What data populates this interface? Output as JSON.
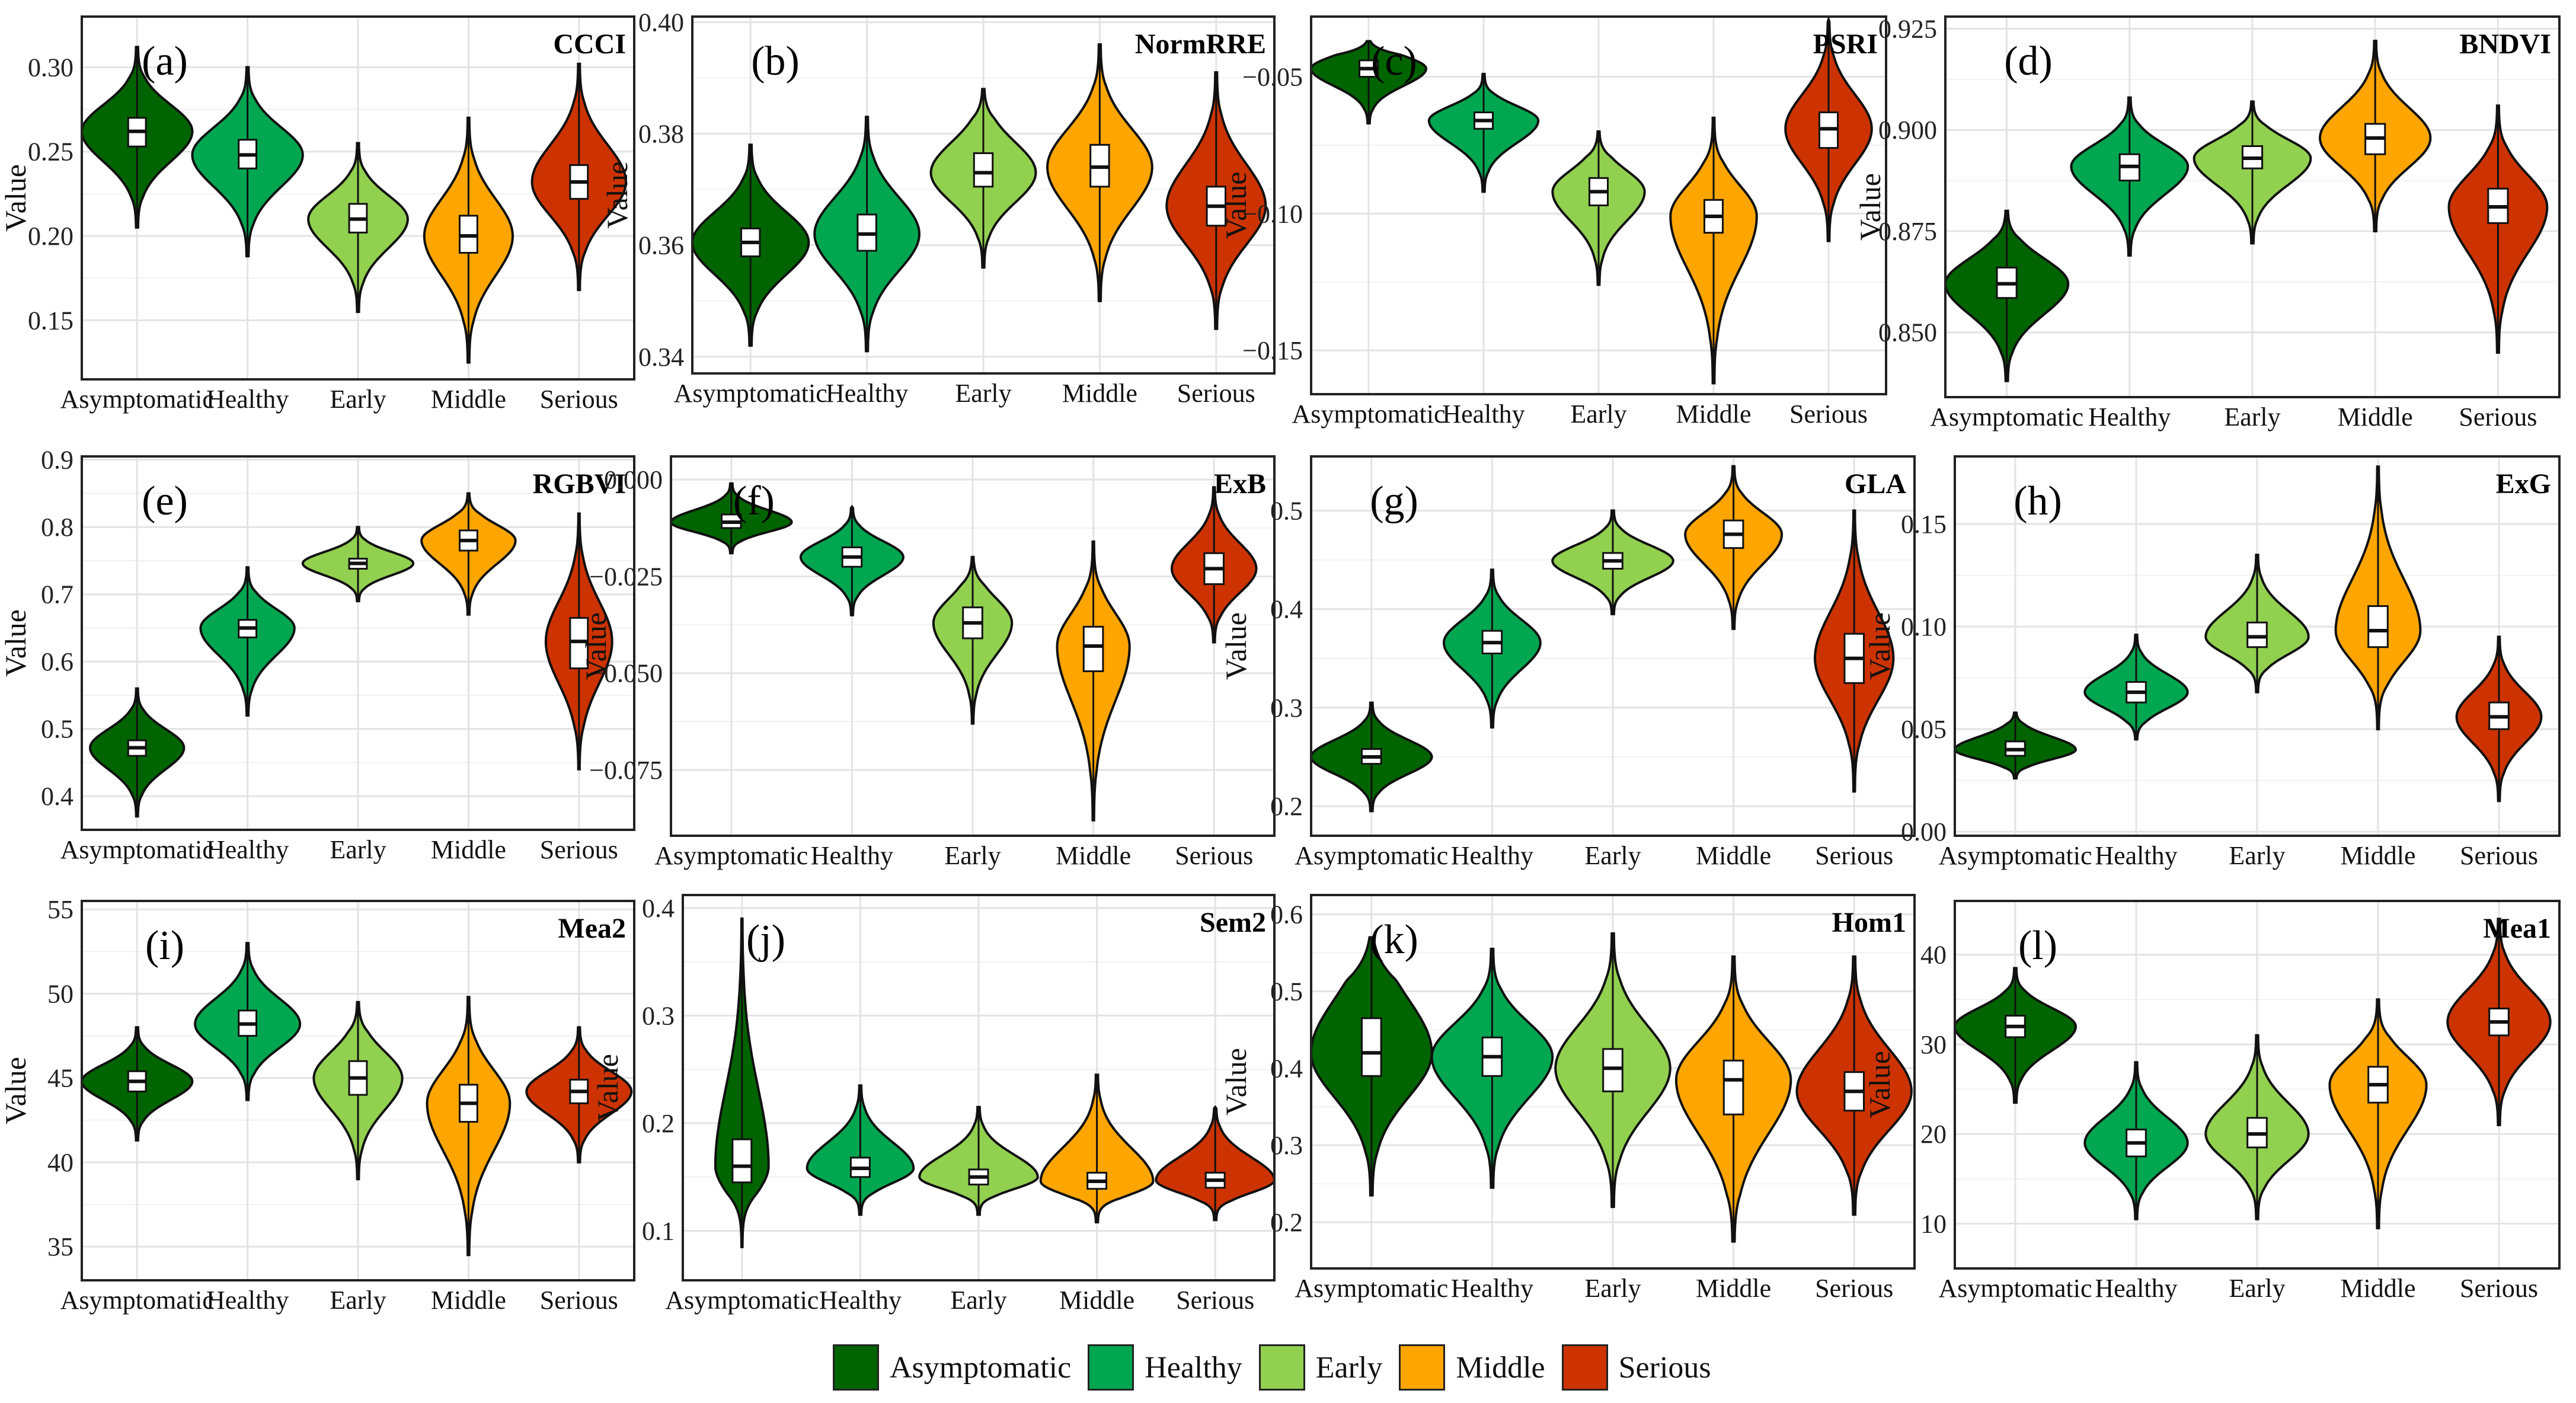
{
  "legend": {
    "items": [
      {
        "label": "Asymptomatic",
        "color": "#006400"
      },
      {
        "label": "Healthy",
        "color": "#00a650"
      },
      {
        "label": "Early",
        "color": "#92d050"
      },
      {
        "label": "Middle",
        "color": "#ffa500"
      },
      {
        "label": "Serious",
        "color": "#cc3300"
      }
    ]
  },
  "chart_data": [
    {
      "type": "violin",
      "letter": "(a)",
      "name": "CCCI",
      "ylabel": "Value",
      "categories": [
        "Asymptomatic",
        "Healthy",
        "Early",
        "Middle",
        "Serious"
      ],
      "ylim": [
        0.115,
        0.33
      ],
      "yticks": [
        0.15,
        0.2,
        0.25,
        0.3
      ],
      "ytick_labels": [
        "0.15",
        "0.20",
        "0.25",
        "0.30"
      ],
      "series": [
        {
          "median": 0.262,
          "q1": 0.253,
          "q3": 0.27,
          "min": 0.205,
          "max": 0.312,
          "width": 1.0
        },
        {
          "median": 0.248,
          "q1": 0.24,
          "q3": 0.257,
          "min": 0.188,
          "max": 0.3,
          "width": 1.0
        },
        {
          "median": 0.21,
          "q1": 0.202,
          "q3": 0.219,
          "min": 0.155,
          "max": 0.255,
          "width": 0.9
        },
        {
          "median": 0.2,
          "q1": 0.19,
          "q3": 0.212,
          "min": 0.125,
          "max": 0.27,
          "width": 0.8
        },
        {
          "median": 0.232,
          "q1": 0.222,
          "q3": 0.242,
          "min": 0.168,
          "max": 0.302,
          "width": 0.85
        }
      ]
    },
    {
      "type": "violin",
      "letter": "(b)",
      "name": "NormRRE",
      "ylabel": "Value",
      "categories": [
        "Asymptomatic",
        "Healthy",
        "Early",
        "Middle",
        "Serious"
      ],
      "ylim": [
        0.337,
        0.401
      ],
      "yticks": [
        0.34,
        0.36,
        0.38,
        0.4
      ],
      "ytick_labels": [
        "0.34",
        "0.36",
        "0.38",
        "0.40"
      ],
      "series": [
        {
          "median": 0.3605,
          "q1": 0.358,
          "q3": 0.363,
          "min": 0.342,
          "max": 0.378,
          "width": 1.0
        },
        {
          "median": 0.362,
          "q1": 0.359,
          "q3": 0.3655,
          "min": 0.341,
          "max": 0.383,
          "width": 0.9
        },
        {
          "median": 0.373,
          "q1": 0.3705,
          "q3": 0.3765,
          "min": 0.356,
          "max": 0.388,
          "width": 0.9
        },
        {
          "median": 0.374,
          "q1": 0.3705,
          "q3": 0.378,
          "min": 0.35,
          "max": 0.396,
          "width": 0.9
        },
        {
          "median": 0.367,
          "q1": 0.3635,
          "q3": 0.3705,
          "min": 0.345,
          "max": 0.391,
          "width": 0.85
        }
      ]
    },
    {
      "type": "violin",
      "letter": "(c)",
      "name": "PSRI",
      "ylabel": "Value",
      "categories": [
        "Asymptomatic",
        "Healthy",
        "Early",
        "Middle",
        "Serious"
      ],
      "ylim": [
        -0.166,
        -0.028
      ],
      "yticks": [
        -0.15,
        -0.1,
        -0.05
      ],
      "ytick_labels": [
        "−0.15",
        "−0.10",
        "−0.05"
      ],
      "series": [
        {
          "median": -0.047,
          "q1": -0.05,
          "q3": -0.044,
          "min": -0.067,
          "max": -0.037,
          "width": 1.0
        },
        {
          "median": -0.066,
          "q1": -0.069,
          "q3": -0.063,
          "min": -0.092,
          "max": -0.049,
          "width": 0.95
        },
        {
          "median": -0.092,
          "q1": -0.097,
          "q3": -0.087,
          "min": -0.126,
          "max": -0.07,
          "width": 0.8
        },
        {
          "median": -0.101,
          "q1": -0.107,
          "q3": -0.095,
          "min": -0.162,
          "max": -0.065,
          "width": 0.75
        },
        {
          "median": -0.069,
          "q1": -0.076,
          "q3": -0.063,
          "min": -0.11,
          "max": -0.029,
          "width": 0.75
        }
      ]
    },
    {
      "type": "violin",
      "letter": "(d)",
      "name": "BNDVI",
      "ylabel": "Value",
      "categories": [
        "Asymptomatic",
        "Healthy",
        "Early",
        "Middle",
        "Serious"
      ],
      "ylim": [
        0.834,
        0.928
      ],
      "yticks": [
        0.85,
        0.875,
        0.9,
        0.925
      ],
      "ytick_labels": [
        "0.850",
        "0.875",
        "0.900",
        "0.925"
      ],
      "series": [
        {
          "median": 0.862,
          "q1": 0.8585,
          "q3": 0.866,
          "min": 0.838,
          "max": 0.88,
          "width": 1.0
        },
        {
          "median": 0.891,
          "q1": 0.8875,
          "q3": 0.894,
          "min": 0.869,
          "max": 0.908,
          "width": 0.95
        },
        {
          "median": 0.893,
          "q1": 0.8905,
          "q3": 0.896,
          "min": 0.872,
          "max": 0.907,
          "width": 0.95
        },
        {
          "median": 0.898,
          "q1": 0.894,
          "q3": 0.9015,
          "min": 0.875,
          "max": 0.922,
          "width": 0.9
        },
        {
          "median": 0.881,
          "q1": 0.877,
          "q3": 0.8855,
          "min": 0.845,
          "max": 0.906,
          "width": 0.8
        }
      ]
    },
    {
      "type": "violin",
      "letter": "(e)",
      "name": "RGBVI",
      "ylabel": "Value",
      "categories": [
        "Asymptomatic",
        "Healthy",
        "Early",
        "Middle",
        "Serious"
      ],
      "ylim": [
        0.35,
        0.905
      ],
      "yticks": [
        0.4,
        0.5,
        0.6,
        0.7,
        0.8,
        0.9
      ],
      "ytick_labels": [
        "0.4",
        "0.5",
        "0.6",
        "0.7",
        "0.8",
        "0.9"
      ],
      "series": [
        {
          "median": 0.472,
          "q1": 0.46,
          "q3": 0.483,
          "min": 0.37,
          "max": 0.56,
          "width": 0.85
        },
        {
          "median": 0.65,
          "q1": 0.636,
          "q3": 0.662,
          "min": 0.52,
          "max": 0.74,
          "width": 0.85
        },
        {
          "median": 0.746,
          "q1": 0.738,
          "q3": 0.753,
          "min": 0.69,
          "max": 0.8,
          "width": 1.0
        },
        {
          "median": 0.78,
          "q1": 0.765,
          "q3": 0.795,
          "min": 0.67,
          "max": 0.85,
          "width": 0.85
        },
        {
          "median": 0.63,
          "q1": 0.59,
          "q3": 0.665,
          "min": 0.44,
          "max": 0.82,
          "width": 0.6
        }
      ]
    },
    {
      "type": "violin",
      "letter": "(f)",
      "name": "ExB",
      "ylabel": "Value",
      "categories": [
        "Asymptomatic",
        "Healthy",
        "Early",
        "Middle",
        "Serious"
      ],
      "ylim": [
        -0.092,
        0.006
      ],
      "yticks": [
        -0.075,
        -0.05,
        -0.025,
        0.0
      ],
      "ytick_labels": [
        "−0.075",
        "−0.050",
        "−0.025",
        "0.000"
      ],
      "series": [
        {
          "median": -0.011,
          "q1": -0.0125,
          "q3": -0.009,
          "min": -0.019,
          "max": -0.001,
          "width": 1.0
        },
        {
          "median": -0.02,
          "q1": -0.0225,
          "q3": -0.0175,
          "min": -0.035,
          "max": -0.007,
          "width": 0.85
        },
        {
          "median": -0.037,
          "q1": -0.041,
          "q3": -0.033,
          "min": -0.063,
          "max": -0.02,
          "width": 0.65
        },
        {
          "median": -0.043,
          "q1": -0.0495,
          "q3": -0.038,
          "min": -0.088,
          "max": -0.016,
          "width": 0.6
        },
        {
          "median": -0.023,
          "q1": -0.027,
          "q3": -0.019,
          "min": -0.042,
          "max": -0.002,
          "width": 0.7
        }
      ]
    },
    {
      "type": "violin",
      "letter": "(g)",
      "name": "GLA",
      "ylabel": "Value",
      "categories": [
        "Asymptomatic",
        "Healthy",
        "Early",
        "Middle",
        "Serious"
      ],
      "ylim": [
        0.17,
        0.555
      ],
      "yticks": [
        0.2,
        0.3,
        0.4,
        0.5
      ],
      "ytick_labels": [
        "0.2",
        "0.3",
        "0.4",
        "0.5"
      ],
      "series": [
        {
          "median": 0.25,
          "q1": 0.243,
          "q3": 0.258,
          "min": 0.195,
          "max": 0.305,
          "width": 1.0
        },
        {
          "median": 0.366,
          "q1": 0.355,
          "q3": 0.378,
          "min": 0.28,
          "max": 0.44,
          "width": 0.8
        },
        {
          "median": 0.449,
          "q1": 0.441,
          "q3": 0.457,
          "min": 0.395,
          "max": 0.5,
          "width": 1.0
        },
        {
          "median": 0.476,
          "q1": 0.462,
          "q3": 0.49,
          "min": 0.38,
          "max": 0.545,
          "width": 0.8
        },
        {
          "median": 0.35,
          "q1": 0.325,
          "q3": 0.375,
          "min": 0.215,
          "max": 0.5,
          "width": 0.65
        }
      ]
    },
    {
      "type": "violin",
      "letter": "(h)",
      "name": "ExG",
      "ylabel": "Value",
      "categories": [
        "Asymptomatic",
        "Healthy",
        "Early",
        "Middle",
        "Serious"
      ],
      "ylim": [
        -0.002,
        0.183
      ],
      "yticks": [
        0.0,
        0.05,
        0.1,
        0.15
      ],
      "ytick_labels": [
        "0.00",
        "0.05",
        "0.10",
        "0.15"
      ],
      "series": [
        {
          "median": 0.04,
          "q1": 0.037,
          "q3": 0.044,
          "min": 0.026,
          "max": 0.058,
          "width": 1.0
        },
        {
          "median": 0.068,
          "q1": 0.063,
          "q3": 0.073,
          "min": 0.045,
          "max": 0.096,
          "width": 0.85
        },
        {
          "median": 0.095,
          "q1": 0.09,
          "q3": 0.102,
          "min": 0.068,
          "max": 0.135,
          "width": 0.85
        },
        {
          "median": 0.098,
          "q1": 0.09,
          "q3": 0.11,
          "min": 0.05,
          "max": 0.178,
          "width": 0.7
        },
        {
          "median": 0.056,
          "q1": 0.05,
          "q3": 0.063,
          "min": 0.015,
          "max": 0.095,
          "width": 0.7
        }
      ]
    },
    {
      "type": "violin",
      "letter": "(i)",
      "name": "Mea2",
      "ylabel": "Value",
      "categories": [
        "Asymptomatic",
        "Healthy",
        "Early",
        "Middle",
        "Serious"
      ],
      "ylim": [
        33.0,
        55.5
      ],
      "yticks": [
        35,
        40,
        45,
        50,
        55
      ],
      "ytick_labels": [
        "35",
        "40",
        "45",
        "50",
        "55"
      ],
      "series": [
        {
          "median": 44.8,
          "q1": 44.2,
          "q3": 45.4,
          "min": 41.3,
          "max": 48.0,
          "width": 1.0
        },
        {
          "median": 48.2,
          "q1": 47.5,
          "q3": 49.0,
          "min": 43.7,
          "max": 53.0,
          "width": 0.95
        },
        {
          "median": 45.0,
          "q1": 44.0,
          "q3": 46.0,
          "min": 39.0,
          "max": 49.5,
          "width": 0.8
        },
        {
          "median": 43.5,
          "q1": 42.4,
          "q3": 44.6,
          "min": 34.5,
          "max": 49.8,
          "width": 0.75
        },
        {
          "median": 44.2,
          "q1": 43.5,
          "q3": 44.9,
          "min": 40.0,
          "max": 48.0,
          "width": 0.95
        }
      ]
    },
    {
      "type": "violin",
      "letter": "(j)",
      "name": "Sem2",
      "ylabel": "Value",
      "categories": [
        "Asymptomatic",
        "Healthy",
        "Early",
        "Middle",
        "Serious"
      ],
      "ylim": [
        0.054,
        0.412
      ],
      "yticks": [
        0.1,
        0.2,
        0.3,
        0.4
      ],
      "ytick_labels": [
        "0.1",
        "0.2",
        "0.3",
        "0.4"
      ],
      "series": [
        {
          "median": 0.16,
          "q1": 0.145,
          "q3": 0.185,
          "min": 0.085,
          "max": 0.39,
          "width": 0.45
        },
        {
          "median": 0.158,
          "q1": 0.15,
          "q3": 0.168,
          "min": 0.115,
          "max": 0.235,
          "width": 0.9
        },
        {
          "median": 0.15,
          "q1": 0.143,
          "q3": 0.157,
          "min": 0.115,
          "max": 0.215,
          "width": 1.0
        },
        {
          "median": 0.146,
          "q1": 0.139,
          "q3": 0.154,
          "min": 0.108,
          "max": 0.245,
          "width": 0.95
        },
        {
          "median": 0.147,
          "q1": 0.14,
          "q3": 0.154,
          "min": 0.11,
          "max": 0.215,
          "width": 1.0
        }
      ]
    },
    {
      "type": "violin",
      "letter": "(k)",
      "name": "Hom1",
      "ylabel": "Value",
      "categories": [
        "Asymptomatic",
        "Healthy",
        "Early",
        "Middle",
        "Serious"
      ],
      "ylim": [
        0.14,
        0.625
      ],
      "yticks": [
        0.2,
        0.3,
        0.4,
        0.5,
        0.6
      ],
      "ytick_labels": [
        "0.2",
        "0.3",
        "0.4",
        "0.5",
        "0.6"
      ],
      "series": [
        {
          "median": 0.42,
          "q1": 0.39,
          "q3": 0.465,
          "min": 0.235,
          "max": 0.57,
          "width": 1.0
        },
        {
          "median": 0.415,
          "q1": 0.39,
          "q3": 0.44,
          "min": 0.245,
          "max": 0.555,
          "width": 1.0
        },
        {
          "median": 0.4,
          "q1": 0.37,
          "q3": 0.425,
          "min": 0.22,
          "max": 0.575,
          "width": 0.95
        },
        {
          "median": 0.385,
          "q1": 0.34,
          "q3": 0.41,
          "min": 0.175,
          "max": 0.545,
          "width": 0.95
        },
        {
          "median": 0.37,
          "q1": 0.345,
          "q3": 0.395,
          "min": 0.21,
          "max": 0.545,
          "width": 0.95
        }
      ]
    },
    {
      "type": "violin",
      "letter": "(l)",
      "name": "Mea1",
      "ylabel": "Value",
      "categories": [
        "Asymptomatic",
        "Healthy",
        "Early",
        "Middle",
        "Serious"
      ],
      "ylim": [
        5.0,
        46.0
      ],
      "yticks": [
        10,
        20,
        30,
        40
      ],
      "ytick_labels": [
        "10",
        "20",
        "30",
        "40"
      ],
      "series": [
        {
          "median": 32.0,
          "q1": 30.8,
          "q3": 33.2,
          "min": 23.5,
          "max": 38.5,
          "width": 1.0
        },
        {
          "median": 19.0,
          "q1": 17.5,
          "q3": 20.5,
          "min": 10.5,
          "max": 28.0,
          "width": 0.85
        },
        {
          "median": 20.0,
          "q1": 18.5,
          "q3": 21.8,
          "min": 10.5,
          "max": 31.0,
          "width": 0.85
        },
        {
          "median": 25.5,
          "q1": 23.5,
          "q3": 27.5,
          "min": 9.5,
          "max": 35.0,
          "width": 0.8
        },
        {
          "median": 32.5,
          "q1": 31.0,
          "q3": 34.0,
          "min": 21.0,
          "max": 44.0,
          "width": 0.85
        }
      ]
    }
  ]
}
